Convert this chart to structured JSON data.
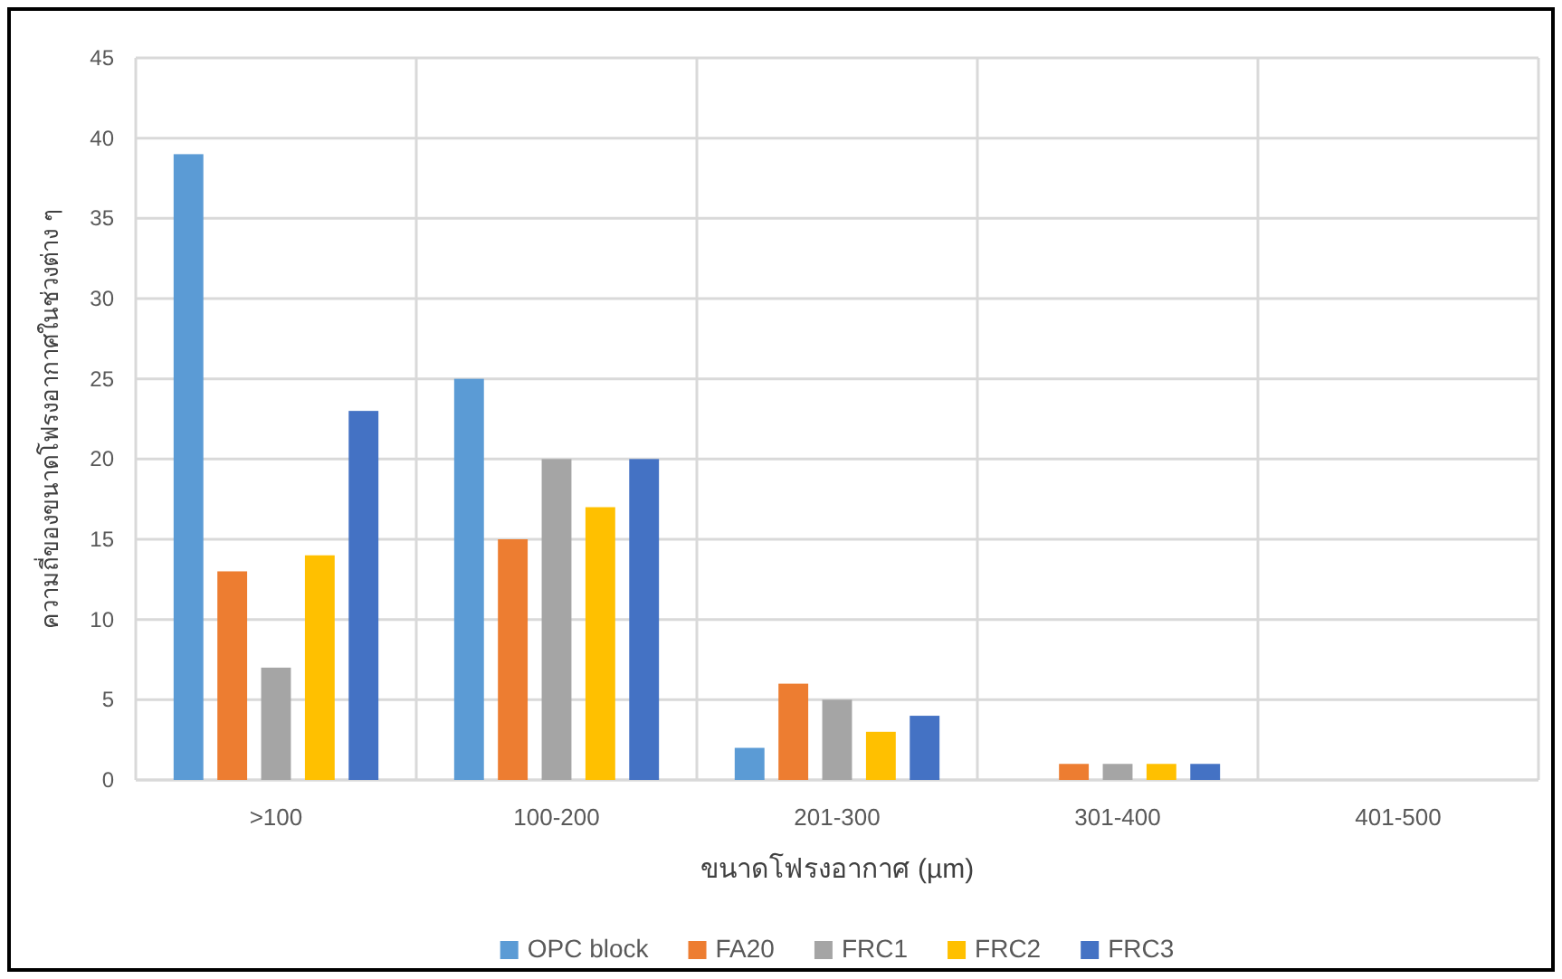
{
  "chart_data": {
    "type": "bar",
    "categories": [
      ">100",
      "100-200",
      "201-300",
      "301-400",
      "401-500"
    ],
    "series": [
      {
        "name": "OPC block",
        "color": "#5b9bd5",
        "values": [
          39,
          25,
          2,
          0,
          0
        ]
      },
      {
        "name": "FA20",
        "color": "#ed7d31",
        "values": [
          13,
          15,
          6,
          1,
          0
        ]
      },
      {
        "name": "FRC1",
        "color": "#a5a5a5",
        "values": [
          7,
          20,
          5,
          1,
          0
        ]
      },
      {
        "name": "FRC2",
        "color": "#ffc000",
        "values": [
          14,
          17,
          3,
          1,
          0
        ]
      },
      {
        "name": "FRC3",
        "color": "#4472c4",
        "values": [
          23,
          20,
          4,
          1,
          0
        ]
      }
    ],
    "xlabel": "ขนาดโฟรงอากาศ (µm)",
    "ylabel": "ความถี่ของขนาดโฟรงอากาศในช่วงต่าง ๆ",
    "ylim": [
      0,
      45
    ],
    "yticks": [
      0,
      5,
      10,
      15,
      20,
      25,
      30,
      35,
      40,
      45
    ],
    "grid": true,
    "legend": "bottom"
  }
}
